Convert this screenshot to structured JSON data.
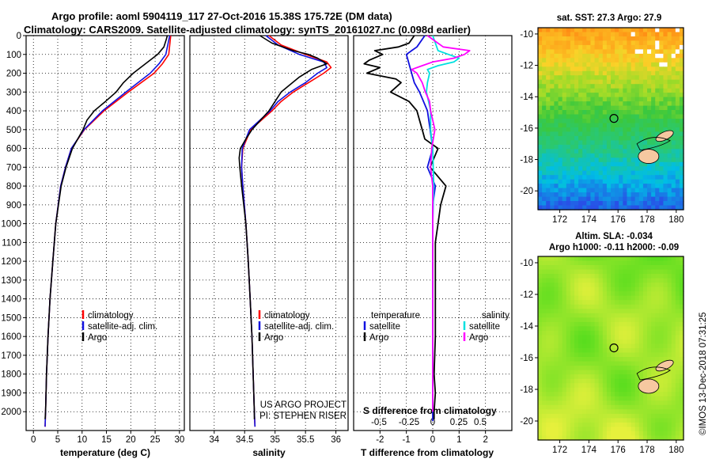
{
  "header": {
    "line1": "Argo profile: aoml 5904119_117 27-Oct-2016 15.38S 175.72E (DM data)",
    "line2": "Climatology: CARS2009. Satellite-adjusted climatology: synTS_20161027.nc (0.098d earlier)"
  },
  "colors": {
    "climatology": "#ff0000",
    "satellite": "#1010e0",
    "argo": "#000000",
    "sat_salinity": "#00e0e0",
    "argo_salinity": "#ff00ff"
  },
  "chart_data": [
    {
      "type": "line",
      "name": "temperature-profile",
      "xlabel": "temperature (deg C)",
      "ylabel": "",
      "xlim": [
        -1.5,
        31
      ],
      "ylim": [
        2100,
        0
      ],
      "x_ticks": [
        "0",
        "5",
        "10",
        "15",
        "20",
        "25",
        "30"
      ],
      "y_ticks": [
        "0",
        "100",
        "200",
        "300",
        "400",
        "500",
        "600",
        "700",
        "800",
        "900",
        "1000",
        "1100",
        "1200",
        "1300",
        "1400",
        "1500",
        "1600",
        "1700",
        "1800",
        "1900",
        "2000"
      ],
      "legend": [
        "climatology",
        "satellite-adj. clim.",
        "Argo"
      ],
      "series": [
        {
          "name": "climatology",
          "depth": [
            0,
            100,
            150,
            200,
            300,
            400,
            500,
            600,
            700,
            800,
            1000,
            1200,
            1400,
            1600,
            1800,
            2000,
            2080
          ],
          "values": [
            28.2,
            27.8,
            26.5,
            24.8,
            19.5,
            14.5,
            10.5,
            7.8,
            6.6,
            5.6,
            4.6,
            4.0,
            3.4,
            3.0,
            2.7,
            2.5,
            2.4
          ]
        },
        {
          "name": "satellite-adj. clim.",
          "depth": [
            0,
            100,
            150,
            200,
            300,
            400,
            500,
            600,
            700,
            800,
            1000,
            1200,
            1400,
            1600,
            1800,
            2000,
            2080
          ],
          "values": [
            28.0,
            27.2,
            25.8,
            24.0,
            19.0,
            14.2,
            10.4,
            7.8,
            6.6,
            5.6,
            4.6,
            4.0,
            3.4,
            3.0,
            2.7,
            2.5,
            2.4
          ]
        },
        {
          "name": "Argo",
          "depth": [
            0,
            20,
            60,
            100,
            150,
            200,
            250,
            300,
            350,
            400,
            450,
            500,
            600,
            700,
            800,
            1000,
            1200,
            1400,
            1600,
            1800,
            2000,
            2040
          ],
          "values": [
            27.5,
            27.3,
            26.8,
            25.5,
            23.0,
            20.5,
            18.5,
            17.0,
            14.8,
            12.5,
            11.0,
            10.2,
            8.0,
            6.7,
            5.7,
            4.6,
            4.0,
            3.4,
            3.0,
            2.7,
            2.5,
            2.4
          ]
        }
      ]
    },
    {
      "type": "line",
      "name": "salinity-profile",
      "xlabel": "salinity",
      "xlim": [
        33.6,
        36.2
      ],
      "ylim": [
        2100,
        0
      ],
      "x_ticks": [
        "34",
        "34.5",
        "35",
        "35.5",
        "36"
      ],
      "legend": [
        "climatology",
        "satellite-adj. clim.",
        "Argo"
      ],
      "annotation": [
        "US ARGO PROJECT",
        "PI: STEPHEN RISER"
      ],
      "series": [
        {
          "name": "climatology",
          "depth": [
            0,
            50,
            100,
            140,
            170,
            200,
            250,
            300,
            350,
            400,
            500,
            600,
            700,
            800,
            1000,
            1200,
            1400,
            1600,
            1800,
            2000,
            2080
          ],
          "values": [
            34.9,
            35.1,
            35.5,
            35.85,
            35.92,
            35.8,
            35.55,
            35.3,
            35.1,
            34.95,
            34.6,
            34.47,
            34.45,
            34.47,
            34.52,
            34.56,
            34.59,
            34.62,
            34.64,
            34.66,
            34.67
          ]
        },
        {
          "name": "satellite-adj. clim.",
          "depth": [
            0,
            50,
            100,
            140,
            170,
            200,
            250,
            300,
            350,
            400,
            500,
            600,
            700,
            800,
            1000,
            1200,
            1400,
            1600,
            1800,
            2000,
            2080
          ],
          "values": [
            34.85,
            35.05,
            35.4,
            35.8,
            35.85,
            35.7,
            35.5,
            35.25,
            35.05,
            34.92,
            34.58,
            34.46,
            34.45,
            34.47,
            34.52,
            34.56,
            34.59,
            34.62,
            34.64,
            34.66,
            34.67
          ]
        },
        {
          "name": "Argo",
          "depth": [
            0,
            40,
            80,
            100,
            120,
            150,
            180,
            220,
            260,
            300,
            350,
            400,
            500,
            550,
            600,
            650,
            700,
            800,
            1000,
            1200,
            1400,
            1600,
            1800,
            2000,
            2040
          ],
          "values": [
            34.75,
            34.95,
            35.3,
            35.55,
            35.7,
            35.85,
            35.6,
            35.4,
            35.25,
            35.1,
            35.0,
            34.9,
            34.62,
            34.52,
            34.43,
            34.41,
            34.42,
            34.45,
            34.52,
            34.56,
            34.59,
            34.62,
            34.64,
            34.66,
            34.66
          ]
        }
      ]
    },
    {
      "type": "line",
      "name": "difference-profile",
      "xlabel": "T difference from climatology",
      "secondary_xlabel": "S difference from climatology",
      "xlim": [
        -3,
        3
      ],
      "ylim": [
        2100,
        0
      ],
      "x_ticks": [
        "-2",
        "-1",
        "0",
        "1",
        "2"
      ],
      "s_ticks": [
        "-0.5",
        "-0.25",
        "0",
        "0.25",
        "0.5"
      ],
      "legend_left": {
        "title": "temperature",
        "items": [
          "satellite",
          "Argo"
        ]
      },
      "legend_right": {
        "title": "salinity",
        "items": [
          "satellite",
          "Argo"
        ]
      },
      "series": [
        {
          "name": "temperature satellite",
          "depth": [
            0,
            60,
            80,
            100,
            150,
            200,
            250,
            300,
            400,
            500,
            600,
            700,
            800,
            900,
            1000,
            1200,
            1400,
            1600,
            1800,
            2000,
            2050
          ],
          "values": [
            -0.3,
            -0.6,
            -0.8,
            -1.0,
            -0.9,
            -0.8,
            -0.7,
            -0.5,
            -0.2,
            -0.1,
            0,
            -0.2,
            0.1,
            0,
            0,
            0,
            0,
            0,
            0,
            0,
            0
          ]
        },
        {
          "name": "temperature Argo",
          "depth": [
            0,
            40,
            60,
            80,
            100,
            130,
            150,
            170,
            200,
            230,
            250,
            300,
            350,
            400,
            450,
            500,
            550,
            600,
            700,
            800,
            900,
            1000,
            1100,
            1200,
            1400,
            1600,
            1800,
            1900,
            2000,
            2040
          ],
          "values": [
            -0.7,
            -0.9,
            -1.3,
            -2.2,
            -1.9,
            -2.4,
            -2.6,
            -2.0,
            -2.5,
            -1.4,
            -1.2,
            -1.6,
            -0.9,
            -0.6,
            -0.5,
            -0.4,
            -0.3,
            0.2,
            -0.1,
            0.5,
            0.3,
            0.2,
            0.1,
            0.1,
            0.1,
            0.1,
            0.05,
            0.1,
            0.05,
            0.05
          ]
        },
        {
          "name": "salinity satellite",
          "depth": [
            0,
            80,
            100,
            120,
            140,
            160,
            180,
            200,
            250,
            300,
            350,
            400,
            500,
            600,
            800,
            1000,
            1200,
            1600,
            2000
          ],
          "values": [
            0,
            0.05,
            0.15,
            0.25,
            0.2,
            0.05,
            -0.05,
            -0.03,
            -0.05,
            -0.06,
            -0.04,
            -0.02,
            -0.02,
            0,
            0.01,
            0,
            0,
            0,
            0
          ]
        },
        {
          "name": "salinity Argo",
          "depth": [
            0,
            60,
            80,
            100,
            120,
            140,
            160,
            180,
            200,
            250,
            300,
            350,
            400,
            450,
            500,
            600,
            700,
            800,
            1000,
            1200,
            1600,
            2000
          ],
          "values": [
            -0.05,
            0.1,
            0.35,
            0.3,
            0.2,
            0,
            -0.1,
            -0.2,
            -0.15,
            -0.1,
            -0.07,
            -0.03,
            -0.02,
            0,
            0.02,
            -0.01,
            -0.02,
            0,
            0,
            0,
            0,
            0
          ]
        }
      ]
    },
    {
      "type": "heatmap",
      "name": "sst-map",
      "title": "sat. SST: 27.3 Argo: 27.9",
      "x_ticks": [
        "172",
        "174",
        "176",
        "178",
        "180"
      ],
      "y_ticks": [
        "-10",
        "-12",
        "-14",
        "-16",
        "-18",
        "-20"
      ],
      "xlim": [
        170.5,
        180.5
      ],
      "ylim": [
        -21.2,
        -9.6
      ],
      "profile_location": [
        175.72,
        -15.38
      ]
    },
    {
      "type": "heatmap",
      "name": "sla-map",
      "title": "Altim. SLA: -0.034",
      "subtitle": "Argo h1000: -0.11 h2000: -0.09",
      "x_ticks": [
        "172",
        "174",
        "176",
        "178",
        "180"
      ],
      "y_ticks": [
        "-10",
        "-12",
        "-14",
        "-16",
        "-18",
        "-20"
      ],
      "xlim": [
        170.5,
        180.5
      ],
      "ylim": [
        -21.2,
        -9.6
      ],
      "profile_location": [
        175.72,
        -15.38
      ]
    }
  ],
  "footer": {
    "stamp": "©IMOS 13-Dec-2018 07:31:25"
  }
}
